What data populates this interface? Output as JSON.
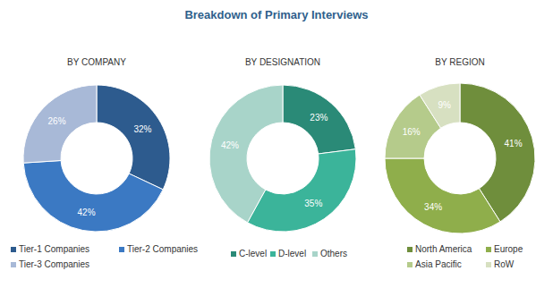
{
  "title": "Breakdown of Primary Interviews",
  "chart_data": [
    {
      "type": "pie",
      "title": "BY COMPANY",
      "categories": [
        "Tier-1 Companies",
        "Tier-2 Companies",
        "Tier-3 Companies"
      ],
      "values": [
        32,
        42,
        26
      ],
      "value_labels": [
        "32%",
        "42%",
        "26%"
      ],
      "colors": [
        "#2d5b8e",
        "#3b79c3",
        "#a8b9d7"
      ],
      "data_labels": true,
      "legend": "bottom"
    },
    {
      "type": "pie",
      "title": "BY DESIGNATION",
      "categories": [
        "C-level",
        "D-level",
        "Others"
      ],
      "values": [
        23,
        35,
        42
      ],
      "value_labels": [
        "23%",
        "35%",
        "42%"
      ],
      "colors": [
        "#2a8a77",
        "#3bb49a",
        "#a8d4c9"
      ],
      "data_labels": true,
      "legend": "bottom"
    },
    {
      "type": "pie",
      "title": "BY REGION",
      "categories": [
        "North America",
        "Europe",
        "Asia Pacific",
        "RoW"
      ],
      "values": [
        41,
        34,
        16,
        9
      ],
      "value_labels": [
        "41%",
        "34%",
        "16%",
        "9%"
      ],
      "colors": [
        "#6f8e3c",
        "#8fae4b",
        "#b5cb8b",
        "#d7e0c1"
      ],
      "data_labels": true,
      "legend": "bottom"
    }
  ]
}
